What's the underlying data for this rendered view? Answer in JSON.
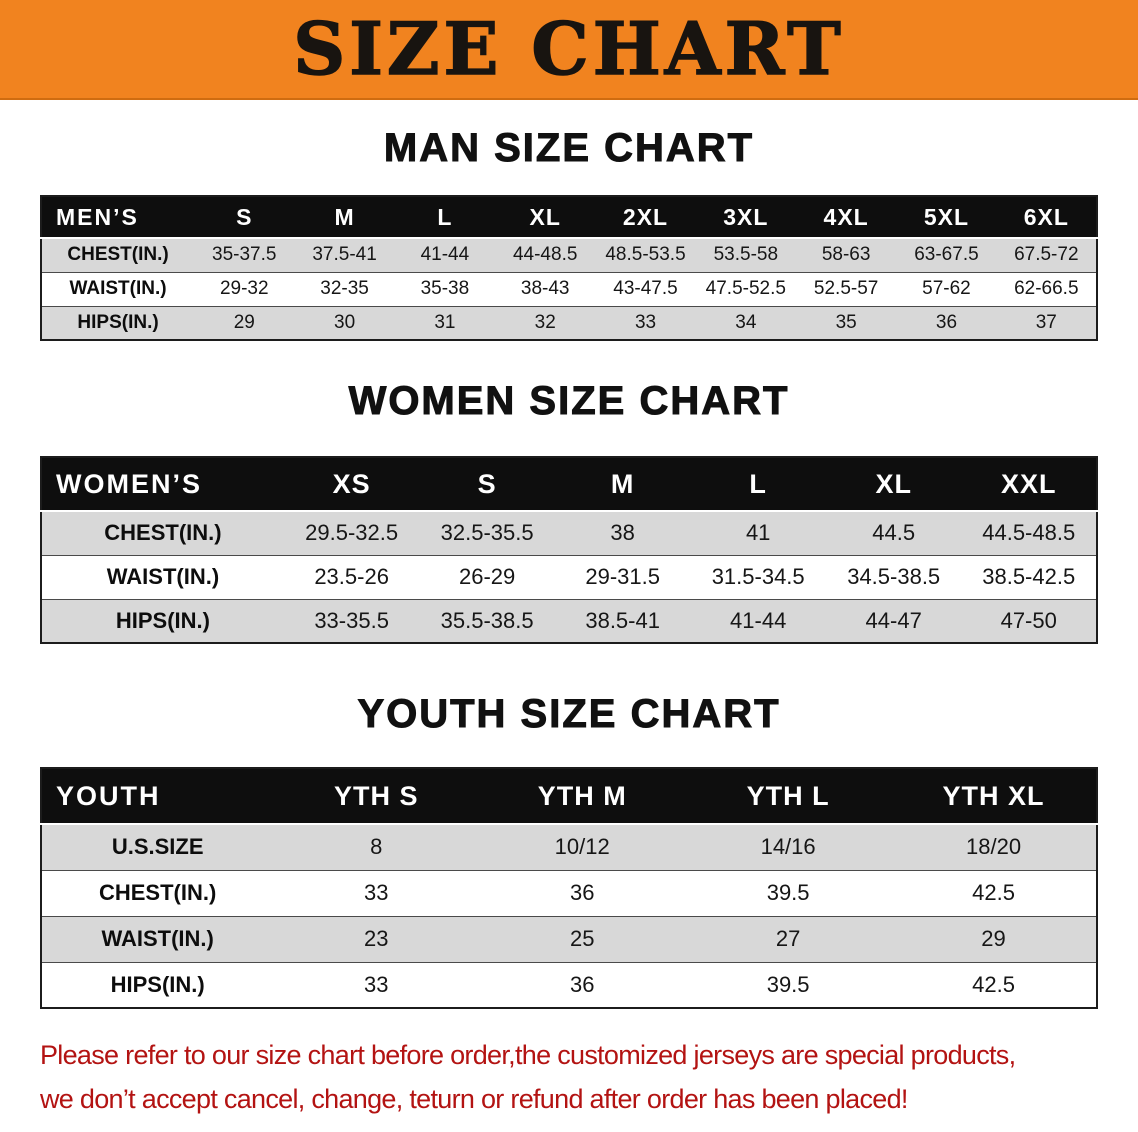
{
  "banner": {
    "title": "SIZE CHART"
  },
  "men": {
    "heading": "MAN SIZE CHART",
    "header": [
      "MEN’S",
      "S",
      "M",
      "L",
      "XL",
      "2XL",
      "3XL",
      "4XL",
      "5XL",
      "6XL"
    ],
    "rows": [
      {
        "label": "CHEST(IN.)",
        "values": [
          "35-37.5",
          "37.5-41",
          "41-44",
          "44-48.5",
          "48.5-53.5",
          "53.5-58",
          "58-63",
          "63-67.5",
          "67.5-72"
        ]
      },
      {
        "label": "WAIST(IN.)",
        "values": [
          "29-32",
          "32-35",
          "35-38",
          "38-43",
          "43-47.5",
          "47.5-52.5",
          "52.5-57",
          "57-62",
          "62-66.5"
        ]
      },
      {
        "label": "HIPS(IN.)",
        "values": [
          "29",
          "30",
          "31",
          "32",
          "33",
          "34",
          "35",
          "36",
          "37"
        ]
      }
    ]
  },
  "women": {
    "heading": "WOMEN SIZE CHART",
    "header": [
      "WOMEN’S",
      "XS",
      "S",
      "M",
      "L",
      "XL",
      "XXL"
    ],
    "rows": [
      {
        "label": "CHEST(IN.)",
        "values": [
          "29.5-32.5",
          "32.5-35.5",
          "38",
          "41",
          "44.5",
          "44.5-48.5"
        ]
      },
      {
        "label": "WAIST(IN.)",
        "values": [
          "23.5-26",
          "26-29",
          "29-31.5",
          "31.5-34.5",
          "34.5-38.5",
          "38.5-42.5"
        ]
      },
      {
        "label": "HIPS(IN.)",
        "values": [
          "33-35.5",
          "35.5-38.5",
          "38.5-41",
          "41-44",
          "44-47",
          "47-50"
        ]
      }
    ]
  },
  "youth": {
    "heading": "YOUTH SIZE CHART",
    "header": [
      "YOUTH",
      "YTH S",
      "YTH M",
      "YTH L",
      "YTH XL"
    ],
    "rows": [
      {
        "label": "U.S.SIZE",
        "values": [
          "8",
          "10/12",
          "14/16",
          "18/20"
        ]
      },
      {
        "label": "CHEST(IN.)",
        "values": [
          "33",
          "36",
          "39.5",
          "42.5"
        ]
      },
      {
        "label": "WAIST(IN.)",
        "values": [
          "23",
          "25",
          "27",
          "29"
        ]
      },
      {
        "label": "HIPS(IN.)",
        "values": [
          "33",
          "36",
          "39.5",
          "42.5"
        ]
      }
    ]
  },
  "footer": {
    "line1": "Please refer to our size chart before order,the customized jerseys are special products,",
    "line2": "we don’t accept cancel, change, teturn or refund after order has been placed!"
  },
  "colors": {
    "banner_bg": "#f1831f",
    "header_bg": "#0e0e0e",
    "row_alt_bg": "#d8d8d8",
    "heading_text": "#111111",
    "footer_text": "#b31312"
  }
}
